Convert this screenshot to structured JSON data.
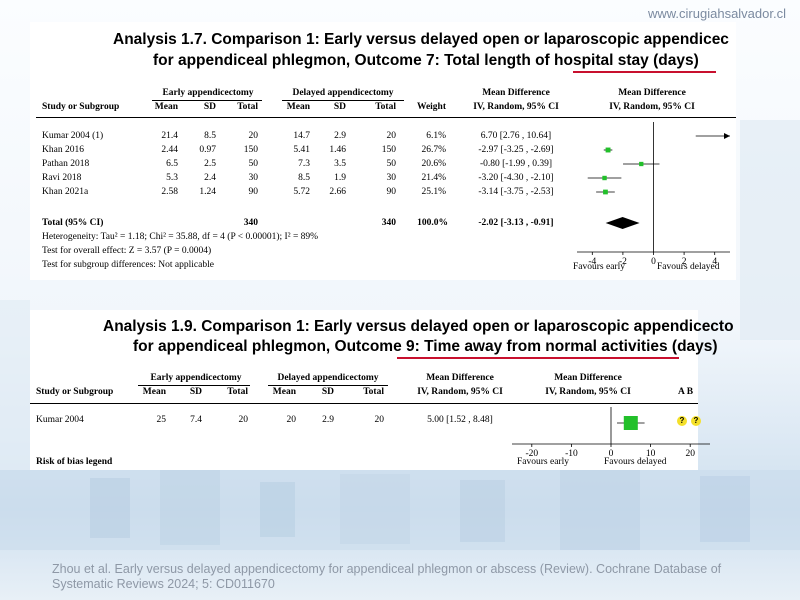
{
  "website": "www.cirugiahsalvador.cl",
  "citation": "Zhou et al. Early versus delayed appendicectomy for appendiceal phlegmon or abscess (Review). Cochrane Database of Systematic Reviews 2024; 5: CD011670",
  "colors": {
    "underline": "#c8102e",
    "marker": "#22c02a",
    "bias_yellow": "#f4e02a"
  },
  "chart_data": [
    {
      "type": "forest",
      "title_line1": "Analysis 1.7.   Comparison 1: Early versus delayed open or laparoscopic appendicec",
      "title_line2_pre": "for appendiceal phlegmon, Outcome 7: ",
      "title_line2_em": "Total length of hospital stay (days)",
      "group_labels": {
        "early": "Early appendicectomy",
        "delayed": "Delayed appendicectomy"
      },
      "headers": {
        "study": "Study or Subgroup",
        "mean": "Mean",
        "sd": "SD",
        "total": "Total",
        "weight": "Weight",
        "md": "Mean Difference",
        "md_sub": "IV, Random, 95% CI"
      },
      "studies": [
        {
          "name": "Kumar 2004 (1)",
          "e_mean": "21.4",
          "e_sd": "8.5",
          "e_total": "20",
          "d_mean": "14.7",
          "d_sd": "2.9",
          "d_total": "20",
          "weight": "6.1%",
          "md_text": "6.70 [2.76 , 10.64]",
          "md": 6.7,
          "lo": 2.76,
          "hi": 10.64,
          "w": 6.1
        },
        {
          "name": "Khan 2016",
          "e_mean": "2.44",
          "e_sd": "0.97",
          "e_total": "150",
          "d_mean": "5.41",
          "d_sd": "1.46",
          "d_total": "150",
          "weight": "26.7%",
          "md_text": "-2.97 [-3.25 , -2.69]",
          "md": -2.97,
          "lo": -3.25,
          "hi": -2.69,
          "w": 26.7
        },
        {
          "name": "Pathan 2018",
          "e_mean": "6.5",
          "e_sd": "2.5",
          "e_total": "50",
          "d_mean": "7.3",
          "d_sd": "3.5",
          "d_total": "50",
          "weight": "20.6%",
          "md_text": "-0.80 [-1.99 , 0.39]",
          "md": -0.8,
          "lo": -1.99,
          "hi": 0.39,
          "w": 20.6
        },
        {
          "name": "Ravi 2018",
          "e_mean": "5.3",
          "e_sd": "2.4",
          "e_total": "30",
          "d_mean": "8.5",
          "d_sd": "1.9",
          "d_total": "30",
          "weight": "21.4%",
          "md_text": "-3.20 [-4.30 , -2.10]",
          "md": -3.2,
          "lo": -4.3,
          "hi": -2.1,
          "w": 21.4
        },
        {
          "name": "Khan 2021a",
          "e_mean": "2.58",
          "e_sd": "1.24",
          "e_total": "90",
          "d_mean": "5.72",
          "d_sd": "2.66",
          "d_total": "90",
          "weight": "25.1%",
          "md_text": "-3.14 [-3.75 , -2.53]",
          "md": -3.14,
          "lo": -3.75,
          "hi": -2.53,
          "w": 25.1
        }
      ],
      "total": {
        "label": "Total (95% CI)",
        "e_total": "340",
        "d_total": "340",
        "weight": "100.0%",
        "md_text": "-2.02 [-3.13 , -0.91]",
        "md": -2.02,
        "lo": -3.13,
        "hi": -0.91
      },
      "notes": [
        "Heterogeneity: Tau² = 1.18; Chi² = 35.88, df = 4 (P < 0.00001); I² = 89%",
        "Test for overall effect: Z = 3.57 (P = 0.0004)",
        "Test for subgroup differences: Not applicable"
      ],
      "axis": {
        "min": -5,
        "max": 5,
        "ticks": [
          -4,
          -2,
          0,
          2,
          4
        ],
        "tick_labels": [
          "-4",
          "-2",
          "0",
          "2",
          "4"
        ]
      },
      "favours": {
        "left": "Favours early",
        "right": "Favours delayed"
      }
    },
    {
      "type": "forest",
      "title_line1": "Analysis 1.9.   Comparison 1: Early versus delayed open or laparoscopic appendicecto",
      "title_line2_pre": "for appendiceal phlegmon, Outcome 9: ",
      "title_line2_em": "Time away from normal activities (days)",
      "group_labels": {
        "early": "Early appendicectomy",
        "delayed": "Delayed appendicectomy"
      },
      "headers": {
        "study": "Study or Subgroup",
        "mean": "Mean",
        "sd": "SD",
        "total": "Total",
        "md": "Mean Difference",
        "md_sub": "IV, Random, 95% CI",
        "rob": "A  B"
      },
      "studies": [
        {
          "name": "Kumar 2004",
          "e_mean": "25",
          "e_sd": "7.4",
          "e_total": "20",
          "d_mean": "20",
          "d_sd": "2.9",
          "d_total": "20",
          "md_text": "5.00 [1.52 , 8.48]",
          "md": 5.0,
          "lo": 1.52,
          "hi": 8.48,
          "rob": [
            "?",
            "?"
          ]
        }
      ],
      "legend_label": "Risk of bias legend",
      "axis": {
        "min": -25,
        "max": 25,
        "ticks": [
          -20,
          -10,
          0,
          10,
          20
        ],
        "tick_labels": [
          "-20",
          "-10",
          "0",
          "10",
          "20"
        ]
      },
      "favours": {
        "left": "Favours early",
        "right": "Favours delayed"
      }
    }
  ]
}
